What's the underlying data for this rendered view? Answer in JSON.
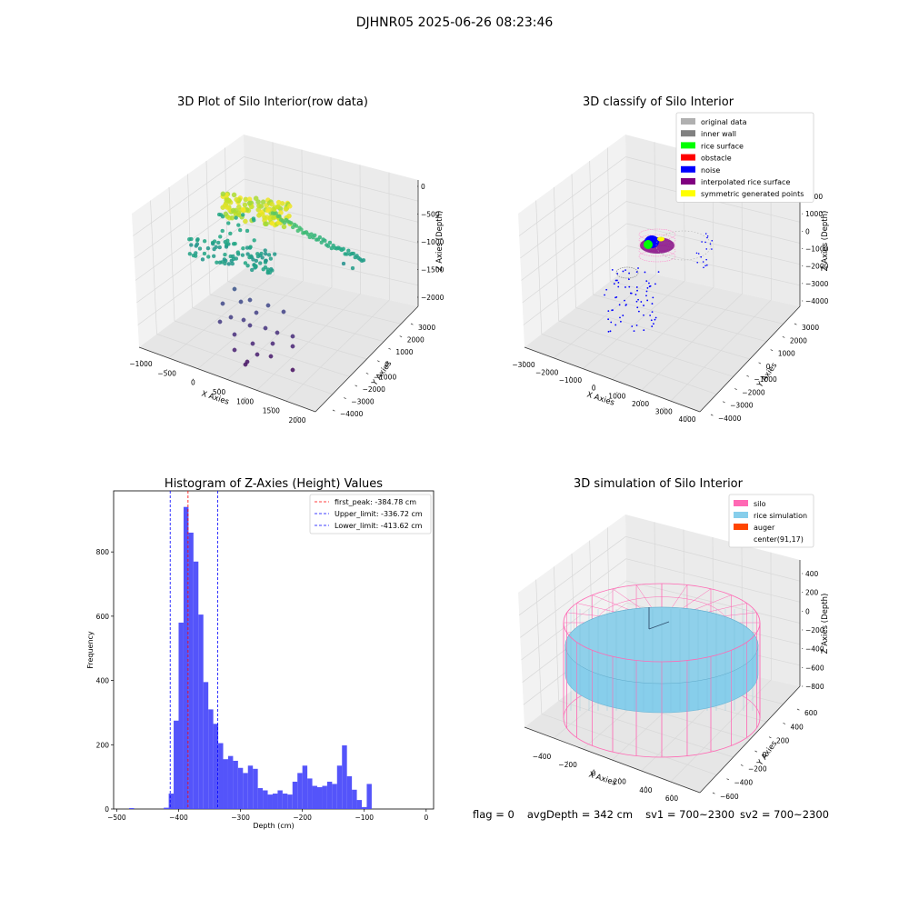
{
  "page_title": "DJHNR05 2025-06-26 08:23:46",
  "footer": {
    "flag": "flag = 0",
    "avg_depth": "avgDepth = 342 cm",
    "sv1": "sv1 = 700~2300",
    "sv2": "sv2 = 700~2300"
  },
  "chart_data": [
    {
      "type": "scatter",
      "projection": "3d",
      "title": "3D Plot of Silo Interior(row data)",
      "xlabel": "X Axies",
      "ylabel": "Y Axies",
      "zlabel": "Z Axies (Depth)",
      "x_ticks": [
        "−1000",
        "−500",
        "0",
        "500",
        "1000",
        "1500",
        "2000"
      ],
      "y_ticks": [
        "−4000",
        "−3000",
        "−2000",
        "−1000",
        "0",
        "1000",
        "2000",
        "3000"
      ],
      "z_ticks": [
        "−2000",
        "−1500",
        "−1000",
        "−500",
        "0"
      ],
      "xlim": [
        -1000,
        2000
      ],
      "ylim": [
        -4000,
        3500
      ],
      "zlim": [
        -2300,
        100
      ],
      "colormap": "viridis",
      "grid": true,
      "point_groups": [
        {
          "label": "upper rice surface cluster (yellow)",
          "x": [
            0,
            300
          ],
          "y": [
            -200,
            300
          ],
          "z": [
            -150,
            -500
          ],
          "approx_points": 90
        },
        {
          "label": "arc toward +x (green-teal)",
          "x": [
            300,
            1700
          ],
          "y": [
            -300,
            2000
          ],
          "z": [
            -600,
            -1300
          ],
          "approx_points": 60
        },
        {
          "label": "mid ring (teal)",
          "x": [
            -900,
            700
          ],
          "y": [
            -800,
            800
          ],
          "z": [
            -900,
            -1400
          ],
          "approx_points": 80
        },
        {
          "label": "lower scattered points (blue-purple)",
          "x": [
            0,
            1400
          ],
          "y": [
            -2500,
            0
          ],
          "z": [
            -1500,
            -2300
          ],
          "approx_points": 30
        }
      ]
    },
    {
      "type": "scatter",
      "projection": "3d",
      "title": "3D classify of Silo Interior",
      "xlabel": "X Axies",
      "ylabel": "Y Axies",
      "zlabel": "Z Axies (Depth)",
      "x_ticks": [
        "−3000",
        "−2000",
        "−1000",
        "0",
        "1000",
        "2000",
        "3000",
        "4000"
      ],
      "y_ticks": [
        "−4000",
        "−3000",
        "−2000",
        "−1000",
        "0",
        "1000",
        "2000",
        "3000"
      ],
      "z_ticks": [
        "−4000",
        "−3000",
        "−2000",
        "−1000",
        "0",
        "1000",
        "2000"
      ],
      "xlim": [
        -3000,
        4000
      ],
      "ylim": [
        -4000,
        3000
      ],
      "zlim": [
        -4500,
        2500
      ],
      "grid": true,
      "legend_position": "top-right",
      "legend": [
        {
          "label": "original data",
          "color": "#b0b0b0"
        },
        {
          "label": "inner wall",
          "color": "#808080"
        },
        {
          "label": "rice surface",
          "color": "#00ff00"
        },
        {
          "label": "obstacle",
          "color": "#ff0000"
        },
        {
          "label": "noise",
          "color": "#0000ff"
        },
        {
          "label": "interpolated rice surface",
          "color": "#800080"
        },
        {
          "label": "symmetric generated points",
          "color": "#ffff00"
        }
      ]
    },
    {
      "type": "bar",
      "title": "Histogram of Z-Axies (Height) Values",
      "xlabel": "Depth (cm)",
      "ylabel": "Frequency",
      "bar_color": "#4b4bfa",
      "bin_width": 8,
      "bins": [
        {
          "x": -480,
          "count": 3
        },
        {
          "x": -424,
          "count": 4
        },
        {
          "x": -416,
          "count": 48
        },
        {
          "x": -408,
          "count": 275
        },
        {
          "x": -400,
          "count": 580
        },
        {
          "x": -392,
          "count": 940
        },
        {
          "x": -384,
          "count": 860
        },
        {
          "x": -376,
          "count": 770
        },
        {
          "x": -368,
          "count": 605
        },
        {
          "x": -360,
          "count": 395
        },
        {
          "x": -352,
          "count": 310
        },
        {
          "x": -344,
          "count": 265
        },
        {
          "x": -336,
          "count": 205
        },
        {
          "x": -328,
          "count": 155
        },
        {
          "x": -320,
          "count": 165
        },
        {
          "x": -312,
          "count": 150
        },
        {
          "x": -304,
          "count": 128
        },
        {
          "x": -296,
          "count": 112
        },
        {
          "x": -288,
          "count": 135
        },
        {
          "x": -280,
          "count": 125
        },
        {
          "x": -272,
          "count": 65
        },
        {
          "x": -264,
          "count": 58
        },
        {
          "x": -256,
          "count": 45
        },
        {
          "x": -248,
          "count": 48
        },
        {
          "x": -240,
          "count": 58
        },
        {
          "x": -232,
          "count": 48
        },
        {
          "x": -224,
          "count": 45
        },
        {
          "x": -216,
          "count": 85
        },
        {
          "x": -208,
          "count": 112
        },
        {
          "x": -200,
          "count": 135
        },
        {
          "x": -192,
          "count": 95
        },
        {
          "x": -184,
          "count": 72
        },
        {
          "x": -176,
          "count": 68
        },
        {
          "x": -168,
          "count": 72
        },
        {
          "x": -160,
          "count": 85
        },
        {
          "x": -152,
          "count": 78
        },
        {
          "x": -144,
          "count": 135
        },
        {
          "x": -136,
          "count": 198
        },
        {
          "x": -128,
          "count": 102
        },
        {
          "x": -120,
          "count": 60
        },
        {
          "x": -112,
          "count": 28
        },
        {
          "x": -104,
          "count": 6
        },
        {
          "x": -96,
          "count": 78
        }
      ],
      "x_ticks": [
        -500,
        -400,
        -300,
        -200,
        -100,
        0
      ],
      "x_tick_labels": [
        "−500",
        "−400",
        "−300",
        "−200",
        "−100",
        "0"
      ],
      "y_ticks": [
        0,
        200,
        400,
        600,
        800
      ],
      "y_tick_labels": [
        "0",
        "200",
        "400",
        "600",
        "800"
      ],
      "xlim": [
        -505,
        12
      ],
      "ylim": [
        0,
        990
      ],
      "vlines": [
        {
          "label": "first_peak: -384.78 cm",
          "x": -384.78,
          "color": "#ff0000"
        },
        {
          "label": "Upper_limit: -336.72 cm",
          "x": -336.72,
          "color": "#0000ff"
        },
        {
          "label": "Lower_limit: -413.62 cm",
          "x": -413.62,
          "color": "#0000ff"
        }
      ],
      "legend_position": "top-right"
    },
    {
      "type": "surface",
      "projection": "3d",
      "title": "3D simulation of Silo Interior",
      "xlabel": "X Axies",
      "ylabel": "Y Axies",
      "zlabel": "Z Axies (Depth)",
      "x_ticks": [
        "−400",
        "−200",
        "0",
        "200",
        "400",
        "600"
      ],
      "y_ticks": [
        "−600",
        "−400",
        "−200",
        "0",
        "200",
        "400",
        "600"
      ],
      "z_ticks": [
        "−800",
        "−600",
        "−400",
        "−200",
        "0",
        "200",
        "400"
      ],
      "grid": true,
      "legend_position": "top-right",
      "legend": [
        {
          "label": "silo",
          "color": "#ff69b4"
        },
        {
          "label": "rice simulation",
          "color": "#87ceeb"
        },
        {
          "label": "auger",
          "color": "#ff4500"
        },
        {
          "label": "center(91,17)",
          "color": "#ffffff"
        }
      ]
    }
  ]
}
